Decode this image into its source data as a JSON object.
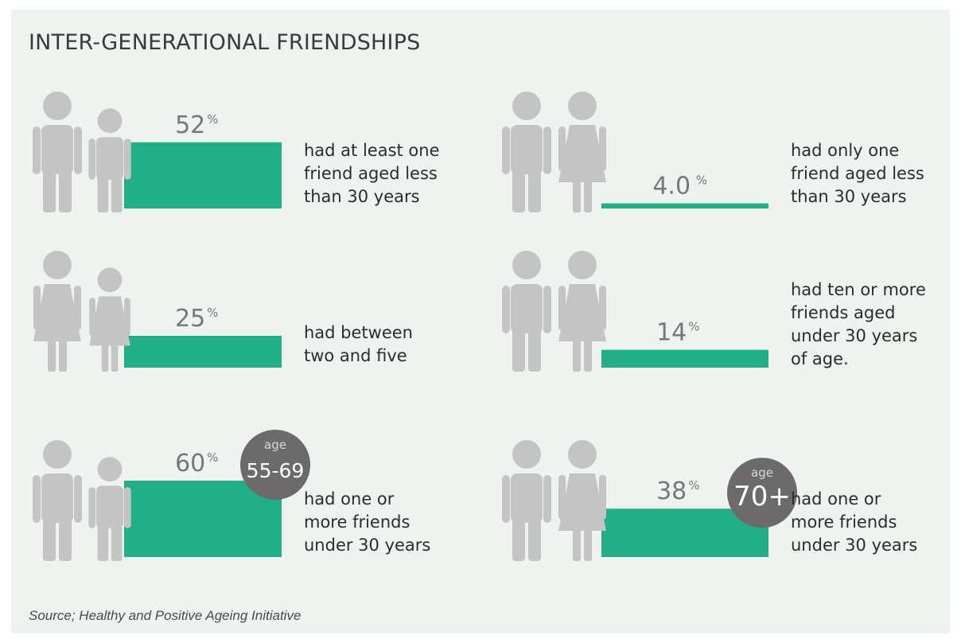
{
  "title": "INTER-GENERATIONAL FRIENDSHIPS",
  "source": "Source; Healthy and Positive Ageing Initiative",
  "colors": {
    "background": "#eef3f0",
    "bar": "#22ae86",
    "figure": "#c4c4c4",
    "value_text": "#777777",
    "badge": "#6c6a6a",
    "badge_text": "#ffffff"
  },
  "icons": {
    "man": "man-figure-icon",
    "boy": "boy-figure-icon",
    "woman": "woman-figure-icon",
    "girl": "girl-figure-icon"
  },
  "chart_data": {
    "type": "bar",
    "title": "INTER-GENERATIONAL FRIENDSHIPS",
    "unit": "%",
    "ylim": [
      0,
      100
    ],
    "series": [
      {
        "value": 52,
        "value_label": "52",
        "label": "had at least one\nfriend aged less\nthan 30 years",
        "figures": [
          "man-figure-icon",
          "boy-figure-icon"
        ]
      },
      {
        "value": 4.0,
        "value_label": "4.0",
        "label": "had only one\nfriend aged less\nthan 30 years",
        "figures": [
          "man-figure-icon",
          "woman-figure-icon"
        ]
      },
      {
        "value": 25,
        "value_label": "25",
        "label": "had between\ntwo and five",
        "figures": [
          "woman-figure-icon",
          "girl-figure-icon"
        ]
      },
      {
        "value": 14,
        "value_label": "14",
        "label": "had ten or more\nfriends aged\nunder 30 years\nof age.",
        "figures": [
          "man-figure-icon",
          "woman-figure-icon"
        ]
      },
      {
        "value": 60,
        "value_label": "60",
        "label": "had one or\nmore friends\nunder 30 years",
        "figures": [
          "man-figure-icon",
          "boy-figure-icon"
        ],
        "badge": {
          "top": "age",
          "main": "55-69"
        }
      },
      {
        "value": 38,
        "value_label": "38",
        "label": "had one or\nmore friends\nunder 30 years",
        "figures": [
          "man-figure-icon",
          "woman-figure-icon"
        ],
        "badge": {
          "top": "age",
          "main": "70+"
        }
      }
    ]
  }
}
